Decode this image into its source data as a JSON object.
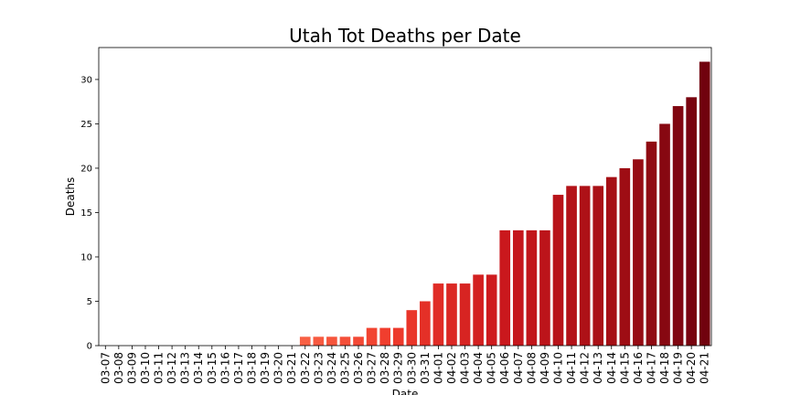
{
  "chart_data": {
    "type": "bar",
    "title": "Utah Tot Deaths per Date",
    "xlabel": "Date",
    "ylabel": "Deaths",
    "ylim": [
      0,
      33.6
    ],
    "yticks": [
      0,
      5,
      10,
      15,
      20,
      25,
      30
    ],
    "grid": false,
    "legend": "none",
    "colormap": "Reds",
    "categories": [
      "03-07",
      "03-08",
      "03-09",
      "03-10",
      "03-11",
      "03-12",
      "03-13",
      "03-14",
      "03-15",
      "03-16",
      "03-17",
      "03-18",
      "03-19",
      "03-20",
      "03-21",
      "03-22",
      "03-23",
      "03-24",
      "03-25",
      "03-26",
      "03-27",
      "03-28",
      "03-29",
      "03-30",
      "03-31",
      "04-01",
      "04-02",
      "04-03",
      "04-04",
      "04-05",
      "04-06",
      "04-07",
      "04-08",
      "04-09",
      "04-10",
      "04-11",
      "04-12",
      "04-13",
      "04-14",
      "04-15",
      "04-16",
      "04-17",
      "04-18",
      "04-19",
      "04-20",
      "04-21"
    ],
    "values": [
      0,
      0,
      0,
      0,
      0,
      0,
      0,
      0,
      0,
      0,
      0,
      0,
      0,
      0,
      0,
      1,
      1,
      1,
      1,
      1,
      2,
      2,
      2,
      4,
      5,
      7,
      7,
      7,
      8,
      8,
      13,
      13,
      13,
      13,
      17,
      18,
      18,
      18,
      19,
      20,
      21,
      23,
      25,
      27,
      28,
      32
    ]
  }
}
